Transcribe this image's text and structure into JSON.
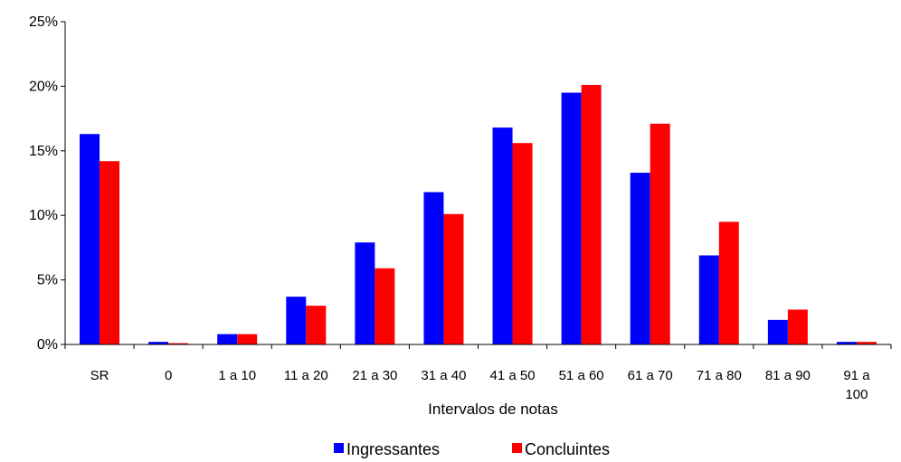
{
  "chart_data": {
    "type": "bar",
    "title": "",
    "xlabel": "Intervalos de notas",
    "ylabel": "",
    "ylim": [
      0,
      25
    ],
    "yticks": [
      "0%",
      "5%",
      "10%",
      "15%",
      "20%",
      "25%"
    ],
    "ytick_values": [
      0,
      5,
      10,
      15,
      20,
      25
    ],
    "grid": false,
    "legend_position": "bottom",
    "categories": [
      "SR",
      "0",
      "1 a 10",
      "11 a 20",
      "21 a 30",
      "31 a 40",
      "41 a 50",
      "51 a 60",
      "61 a 70",
      "71 a 80",
      "81 a 90",
      "91 a\n100"
    ],
    "series": [
      {
        "name": "Ingressantes",
        "color": "#0000ff",
        "values": [
          16.3,
          0.2,
          0.8,
          3.7,
          7.9,
          11.8,
          16.8,
          19.5,
          13.3,
          6.9,
          1.9,
          0.2
        ]
      },
      {
        "name": "Concluintes",
        "color": "#ff0000",
        "values": [
          14.2,
          0.1,
          0.8,
          3.0,
          5.9,
          10.1,
          15.6,
          20.1,
          17.1,
          9.5,
          2.7,
          0.2
        ]
      }
    ]
  }
}
